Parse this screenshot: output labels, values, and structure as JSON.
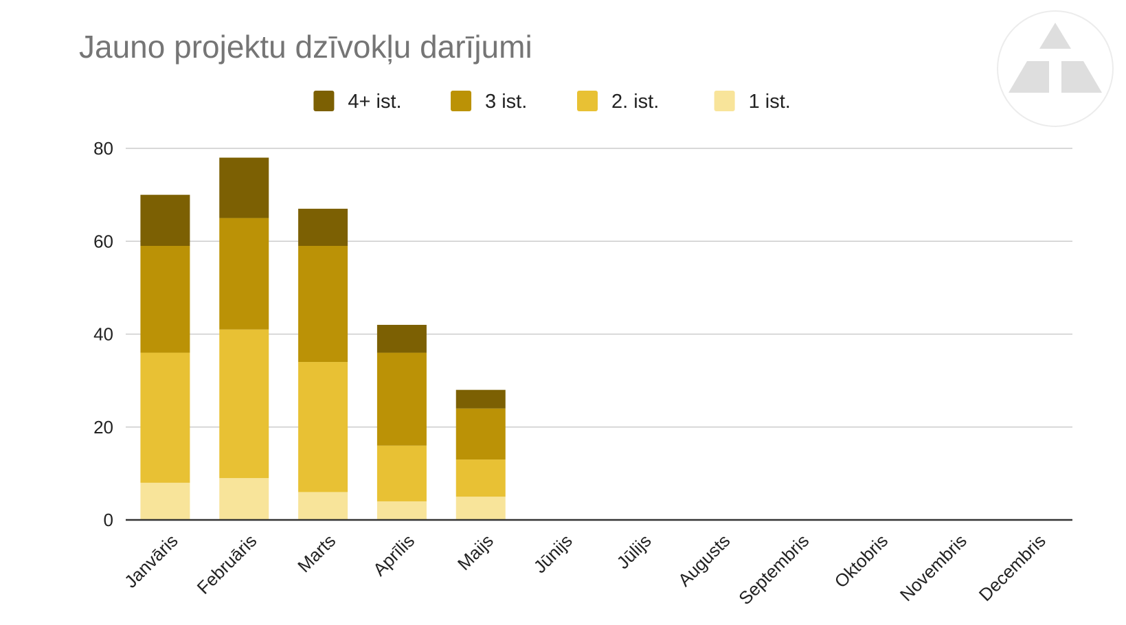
{
  "chart_data": {
    "type": "bar",
    "stacked": true,
    "title": "Jauno projektu dzīvokļu darījumi",
    "xlabel": "",
    "ylabel": "",
    "ylim": [
      0,
      80
    ],
    "yticks": [
      0,
      20,
      40,
      60,
      80
    ],
    "grid": true,
    "legend_position": "top-center",
    "categories": [
      "Janvāris",
      "Februāris",
      "Marts",
      "Aprīlis",
      "Maijs",
      "Jūnijs",
      "Jūlijs",
      "Augusts",
      "Septembris",
      "Oktobris",
      "Novembris",
      "Decembris"
    ],
    "series": [
      {
        "name": "1 ist.",
        "color": "#f8e49a",
        "values": [
          8,
          9,
          6,
          4,
          5,
          0,
          0,
          0,
          0,
          0,
          0,
          0
        ]
      },
      {
        "name": "2. ist.",
        "color": "#e8c134",
        "values": [
          28,
          32,
          28,
          12,
          8,
          0,
          0,
          0,
          0,
          0,
          0,
          0
        ]
      },
      {
        "name": "3 ist.",
        "color": "#bb9206",
        "values": [
          23,
          24,
          25,
          20,
          11,
          0,
          0,
          0,
          0,
          0,
          0,
          0
        ]
      },
      {
        "name": "4+ ist.",
        "color": "#7c6003",
        "values": [
          11,
          13,
          8,
          6,
          4,
          0,
          0,
          0,
          0,
          0,
          0,
          0
        ]
      }
    ],
    "legend_order": [
      "4+ ist.",
      "3 ist.",
      "2. ist.",
      "1 ist."
    ]
  },
  "logo": {
    "name": "logo-icon",
    "color": "#dedede"
  }
}
